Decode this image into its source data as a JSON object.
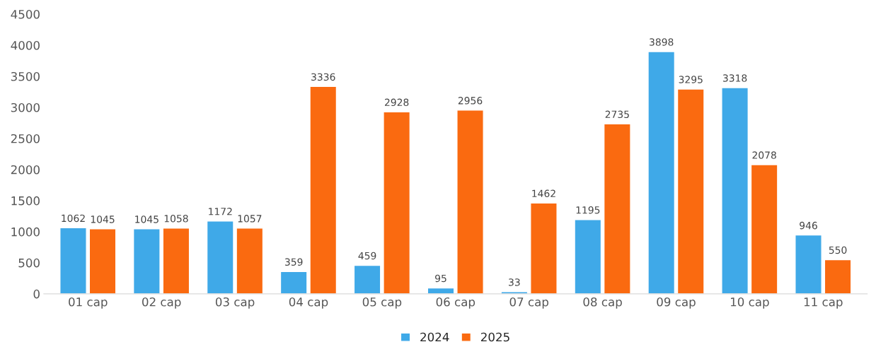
{
  "chart_data": {
    "type": "bar",
    "categories": [
      "01 cap",
      "02 cap",
      "03 cap",
      "04 cap",
      "05 cap",
      "06 cap",
      "07 cap",
      "08 cap",
      "09 cap",
      "10 cap",
      "11 cap"
    ],
    "series": [
      {
        "name": "2024",
        "color": "#3fa9e8",
        "values": [
          1062,
          1045,
          1172,
          359,
          459,
          95,
          33,
          1195,
          3898,
          3318,
          946
        ]
      },
      {
        "name": "2025",
        "color": "#fa6a10",
        "values": [
          1045,
          1058,
          1057,
          3336,
          2928,
          2956,
          1462,
          2735,
          3295,
          2078,
          550
        ]
      }
    ],
    "ylim": [
      0,
      4500
    ],
    "yticks": [
      0,
      500,
      1000,
      1500,
      2000,
      2500,
      3000,
      3500,
      4000,
      4500
    ],
    "grid": false,
    "legend": "bottom",
    "data_labels": true
  }
}
